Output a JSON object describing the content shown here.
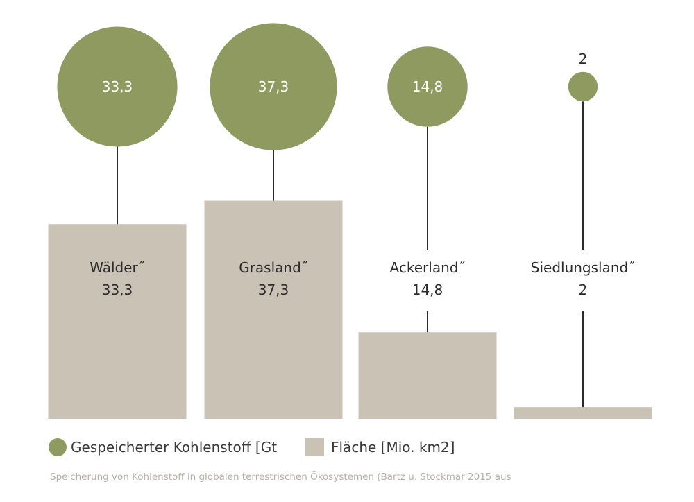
{
  "chart_data": {
    "type": "bar",
    "categories": [
      "Wälder˝",
      "Grasland˝",
      "Ackerland˝",
      "Siedlungsland˝"
    ],
    "series": [
      {
        "name": "Gespeicherter Kohlenstoff [Gt",
        "values": [
          33.3,
          37.3,
          14.8,
          2
        ],
        "labels": [
          "33,3",
          "37,3",
          "14,8",
          "2"
        ],
        "mark": "bubble"
      },
      {
        "name": "Fläche [Mio. km2]",
        "values": [
          33.3,
          37.3,
          14.8,
          2
        ],
        "labels": [
          "33,3",
          "37,3",
          "14,8",
          "2"
        ],
        "mark": "bar"
      }
    ],
    "legend_position": "bottom-left",
    "caption": "Speicherung von Kohlenstoff in globalen terrestrischen Ökosystemen (Bartz u. Stockmar 2015 aus",
    "colors": {
      "bubble": "#8f9a61",
      "bar": "#c9c2b5",
      "line": "#2b2b2b"
    },
    "grid": false
  }
}
